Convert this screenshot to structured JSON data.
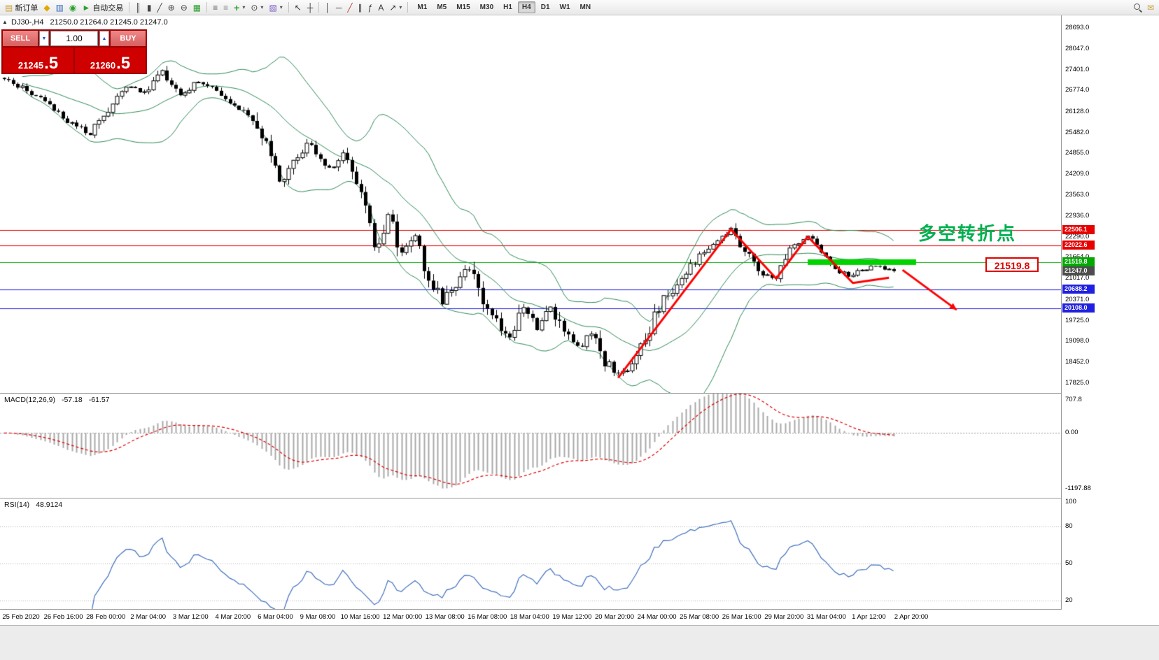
{
  "toolbar": {
    "active_timeframe": "H4",
    "timeframes": [
      "M1",
      "M5",
      "M15",
      "M30",
      "H1",
      "H4",
      "D1",
      "W1",
      "MN"
    ],
    "items": [
      {
        "name": "new-order-button",
        "type": "labeled",
        "glyph": "▤",
        "glyph_color": "#c9a23d",
        "label": "新订单"
      },
      {
        "name": "profiles-icon",
        "type": "icon",
        "glyph": "◆",
        "glyph_color": "#e0a800"
      },
      {
        "name": "market-watch-icon",
        "type": "icon",
        "glyph": "▥",
        "glyph_color": "#3a6fc4"
      },
      {
        "name": "navigator-icon",
        "type": "icon",
        "glyph": "◉",
        "glyph_color": "#2da12d"
      },
      {
        "name": "autotrading-button",
        "type": "labeled",
        "glyph": "►",
        "glyph_color": "#2da12d",
        "label": "自动交易"
      },
      {
        "type": "sep"
      },
      {
        "name": "bar-chart-type-button",
        "type": "icon",
        "glyph": "║",
        "glyph_color": "#444"
      },
      {
        "name": "candlestick-type-button",
        "type": "icon",
        "glyph": "▮",
        "glyph_color": "#444"
      },
      {
        "name": "line-chart-type-button",
        "type": "icon",
        "glyph": "╱",
        "glyph_color": "#444"
      },
      {
        "name": "zoom-in-button",
        "type": "icon",
        "glyph": "⊕",
        "glyph_color": "#444"
      },
      {
        "name": "zoom-out-button",
        "type": "icon",
        "glyph": "⊖",
        "glyph_color": "#444"
      },
      {
        "name": "tile-windows-button",
        "type": "icon",
        "glyph": "▦",
        "glyph_color": "#2da12d"
      },
      {
        "type": "sep"
      },
      {
        "name": "indicators-button",
        "type": "icon",
        "glyph": "≡",
        "glyph_color": "#555"
      },
      {
        "name": "objects-list-button",
        "type": "icon",
        "glyph": "≡",
        "glyph_color": "#888"
      },
      {
        "name": "add-indicator-button",
        "type": "dropdown",
        "glyph": "+",
        "glyph_color": "#2da12d"
      },
      {
        "name": "periods-button",
        "type": "dropdown",
        "glyph": "⊙",
        "glyph_color": "#444"
      },
      {
        "name": "templates-button",
        "type": "dropdown",
        "glyph": "▧",
        "glyph_color": "#7a5cc4"
      },
      {
        "type": "sep"
      },
      {
        "name": "cursor-button",
        "type": "icon",
        "glyph": "↖",
        "glyph_color": "#333"
      },
      {
        "name": "crosshair-button",
        "type": "icon",
        "glyph": "┼",
        "glyph_color": "#333"
      },
      {
        "type": "sep"
      },
      {
        "name": "vertical-line-button",
        "type": "icon",
        "glyph": "│",
        "glyph_color": "#333"
      },
      {
        "name": "horizontal-line-button",
        "type": "icon",
        "glyph": "─",
        "glyph_color": "#333"
      },
      {
        "name": "trendline-button",
        "type": "icon",
        "glyph": "╱",
        "glyph_color": "#c04040"
      },
      {
        "name": "channel-button",
        "type": "icon",
        "glyph": "∥",
        "glyph_color": "#333"
      },
      {
        "name": "fibonacci-button",
        "type": "icon",
        "glyph": "ƒ",
        "glyph_color": "#333"
      },
      {
        "name": "text-button",
        "type": "icon",
        "glyph": "A",
        "glyph_color": "#333"
      },
      {
        "name": "arrows-button",
        "type": "dropdown",
        "glyph": "↗",
        "glyph_color": "#333"
      },
      {
        "type": "sep"
      },
      {
        "type": "tf-group"
      },
      {
        "type": "spacer"
      },
      {
        "name": "search-button",
        "type": "mag"
      },
      {
        "name": "community-button",
        "type": "icon",
        "glyph": "✉",
        "glyph_color": "#c9a23d"
      }
    ]
  },
  "chart": {
    "symbol": "DJ30-,H4",
    "ohlc": "21250.0 21264.0 21245.0 21247.0",
    "one_click": {
      "sell_label": "SELL",
      "buy_label": "BUY",
      "volume": "1.00",
      "sell_price": "21245",
      "sell_fraction": ".5",
      "buy_price": "21260",
      "buy_fraction": ".5"
    },
    "annotation_text": "多空转折点",
    "level_tag": "21519.8",
    "price_axis_labels": [
      "28693.0",
      "28047.0",
      "27401.0",
      "26774.0",
      "26128.0",
      "25482.0",
      "24855.0",
      "24209.0",
      "23563.0",
      "22936.0",
      "22290.0",
      "21664.0",
      "21017.0",
      "20371.0",
      "19725.0",
      "19098.0",
      "18452.0",
      "17825.0"
    ],
    "levels": [
      {
        "label": "22506.1",
        "price": 22506.1,
        "color": "#e60000",
        "line": true
      },
      {
        "label": "22022.6",
        "price": 22022.6,
        "color": "#e60000",
        "line": true
      },
      {
        "label": "21519.8",
        "price": 21519.8,
        "color": "#00a800",
        "line": true
      },
      {
        "label": "21247.0",
        "price": 21247.0,
        "color": "#4d4d4d",
        "line": false
      },
      {
        "label": "20688.2",
        "price": 20688.2,
        "color": "#2020e0",
        "line": true
      },
      {
        "label": "20108.0",
        "price": 20108.0,
        "color": "#2020e0",
        "line": true
      }
    ],
    "time_axis_labels": [
      "25 Feb 2020",
      "26 Feb 16:00",
      "28 Feb 00:00",
      "2 Mar 04:00",
      "3 Mar 12:00",
      "4 Mar 20:00",
      "6 Mar 04:00",
      "9 Mar 08:00",
      "10 Mar 16:00",
      "12 Mar 00:00",
      "13 Mar 08:00",
      "16 Mar 08:00",
      "18 Mar 04:00",
      "19 Mar 12:00",
      "20 Mar 20:00",
      "24 Mar 00:00",
      "25 Mar 08:00",
      "26 Mar 16:00",
      "29 Mar 20:00",
      "31 Mar 04:00",
      "1 Apr 12:00",
      "2 Apr 20:00"
    ]
  },
  "chart_data": {
    "type": "candlestick",
    "symbol": "DJ30",
    "timeframe": "H4",
    "price_range": [
      17580,
      29010
    ],
    "bars": 198,
    "close_anchors": [
      [
        0,
        27160
      ],
      [
        4,
        26850
      ],
      [
        8,
        26500
      ],
      [
        14,
        25850
      ],
      [
        19,
        25430
      ],
      [
        23,
        26200
      ],
      [
        27,
        26900
      ],
      [
        31,
        26700
      ],
      [
        35,
        27380
      ],
      [
        39,
        26650
      ],
      [
        43,
        27050
      ],
      [
        47,
        26800
      ],
      [
        51,
        26350
      ],
      [
        55,
        25950
      ],
      [
        58,
        25000
      ],
      [
        61,
        23950
      ],
      [
        64,
        24700
      ],
      [
        68,
        25150
      ],
      [
        72,
        24400
      ],
      [
        75,
        24950
      ],
      [
        79,
        23600
      ],
      [
        82,
        21900
      ],
      [
        85,
        22950
      ],
      [
        88,
        21700
      ],
      [
        91,
        22350
      ],
      [
        94,
        21100
      ],
      [
        97,
        20250
      ],
      [
        100,
        20900
      ],
      [
        103,
        21350
      ],
      [
        106,
        20400
      ],
      [
        109,
        19750
      ],
      [
        112,
        19150
      ],
      [
        115,
        20050
      ],
      [
        118,
        19500
      ],
      [
        121,
        20150
      ],
      [
        124,
        19350
      ],
      [
        127,
        18900
      ],
      [
        130,
        19350
      ],
      [
        133,
        18500
      ],
      [
        136,
        18050
      ],
      [
        139,
        18350
      ],
      [
        142,
        19250
      ],
      [
        146,
        20350
      ],
      [
        150,
        21050
      ],
      [
        154,
        21700
      ],
      [
        158,
        22250
      ],
      [
        161,
        22500
      ],
      [
        164,
        21850
      ],
      [
        168,
        21150
      ],
      [
        171,
        21050
      ],
      [
        174,
        21900
      ],
      [
        178,
        22280
      ],
      [
        181,
        21900
      ],
      [
        184,
        21350
      ],
      [
        187,
        21050
      ],
      [
        190,
        21280
      ],
      [
        193,
        21400
      ],
      [
        197,
        21247
      ]
    ],
    "indicators": {
      "bollinger": {
        "period": 20,
        "deviation": 2,
        "color": "#2e8b57"
      },
      "macd": {
        "label": "MACD(12,26,9)",
        "value_text": "-57.18",
        "signal_text": "-61.57",
        "axis_labels": [
          "707.8",
          "0.00",
          "-1197.88"
        ],
        "range": [
          -1400,
          850
        ],
        "histogram_color": "#a8a8a8",
        "signal_color": "#e00000"
      },
      "rsi": {
        "label": "RSI(14)",
        "value_text": "48.9124",
        "axis_labels": [
          "100",
          "80",
          "50",
          "20"
        ],
        "levels": [
          80,
          50,
          20
        ],
        "range": [
          13,
          103
        ],
        "color": "#3f6fbf"
      }
    },
    "drawings": {
      "trend_color": "#ff0000",
      "zigzag": [
        [
          136,
          17980
        ],
        [
          161,
          22520
        ],
        [
          171,
          21020
        ],
        [
          178,
          22300
        ],
        [
          188,
          20880
        ],
        [
          196,
          21040
        ]
      ],
      "arrow": [
        [
          199,
          21280
        ],
        [
          211,
          20060
        ]
      ],
      "support_bar": {
        "price": 21519.8,
        "from_bar": 178,
        "to_bar": 202,
        "color": "#00d300"
      }
    }
  }
}
